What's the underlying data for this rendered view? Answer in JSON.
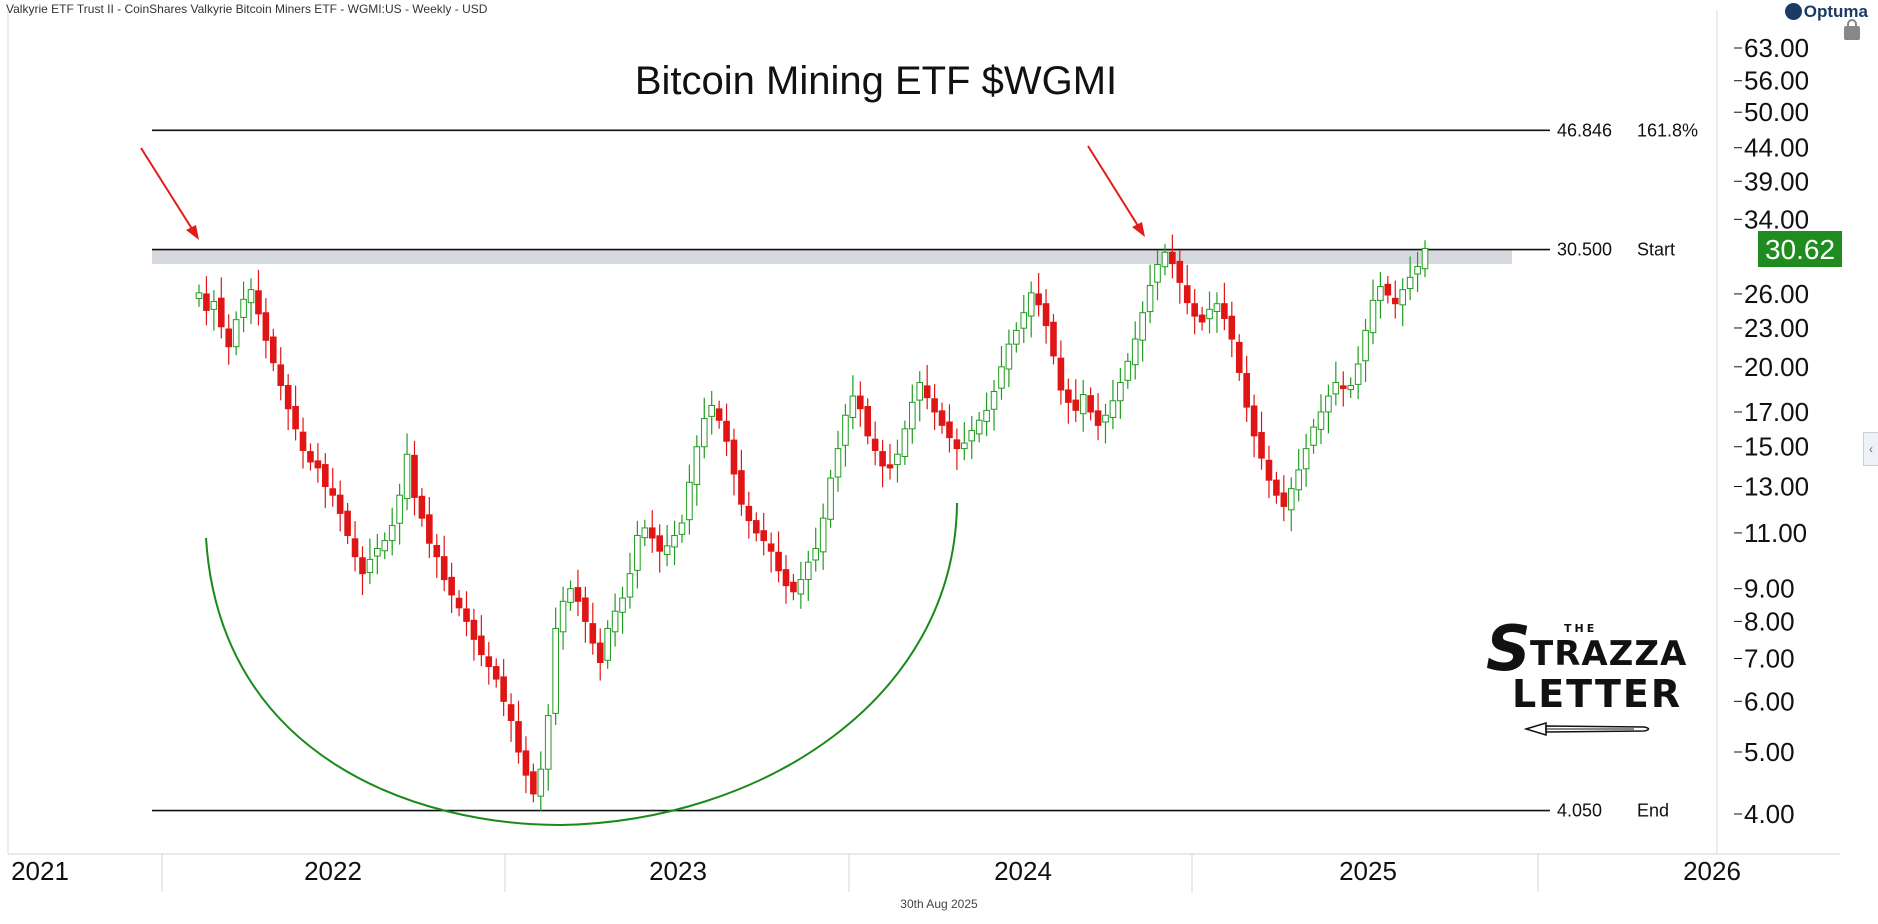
{
  "header": {
    "source_line": "Valkyrie ETF Trust II - CoinShares Valkyrie Bitcoin Miners ETF - WGMI:US - Weekly - USD",
    "logo": "Optuma",
    "date_footer": "30th Aug 2025",
    "brand": {
      "the": "THE",
      "s": "S",
      "w1": "TRAZZA",
      "w2": "LETTER"
    }
  },
  "chart_data": {
    "type": "candlestick",
    "title": "Bitcoin Mining ETF $WGMI",
    "y_scale": "log",
    "y_ticks": [
      "63.00",
      "56.00",
      "50.00",
      "44.00",
      "39.00",
      "34.00",
      "26.00",
      "23.00",
      "20.00",
      "17.00",
      "15.00",
      "13.00",
      "11.00",
      "9.00",
      "8.00",
      "7.00",
      "6.00",
      "5.00",
      "4.00"
    ],
    "x_labels": [
      "2021",
      "2022",
      "2023",
      "2024",
      "2025",
      "2026"
    ],
    "last_price": "30.62",
    "levels": [
      {
        "value": "46.846",
        "label": "161.8%"
      },
      {
        "value": "30.500",
        "label": "Start"
      },
      {
        "value": "4.050",
        "label": "End"
      }
    ],
    "weekly_close": [
      26.1,
      24.5,
      25.3,
      23.1,
      21.5,
      23.7,
      25.5,
      26.4,
      24.2,
      22.0,
      20.3,
      18.7,
      17.2,
      16.0,
      14.8,
      14.2,
      13.9,
      13.0,
      12.6,
      11.8,
      10.9,
      10.1,
      9.5,
      10.0,
      10.4,
      10.7,
      11.3,
      12.6,
      14.6,
      12.5,
      11.6,
      10.6,
      10.1,
      9.3,
      8.8,
      8.4,
      8.0,
      7.5,
      7.1,
      6.8,
      6.5,
      6.0,
      5.6,
      5.0,
      4.6,
      4.3,
      4.7,
      5.7,
      7.8,
      8.6,
      9.0,
      8.6,
      8.0,
      7.4,
      6.9,
      7.8,
      8.3,
      8.7,
      9.5,
      10.9,
      11.2,
      10.8,
      10.3,
      10.5,
      10.9,
      11.4,
      13.2,
      15.0,
      16.6,
      17.4,
      16.5,
      15.3,
      13.6,
      12.2,
      11.5,
      11.0,
      10.7,
      10.3,
      9.6,
      9.1,
      8.9,
      9.3,
      9.9,
      10.4,
      11.6,
      13.4,
      14.9,
      16.8,
      18.0,
      17.2,
      15.6,
      14.8,
      14.0,
      13.9,
      14.6,
      16.0,
      17.6,
      18.9,
      17.9,
      17.0,
      16.2,
      15.5,
      14.9,
      15.2,
      15.9,
      16.5,
      17.1,
      18.3,
      20.0,
      21.7,
      22.8,
      24.3,
      26.1,
      25.0,
      23.2,
      20.8,
      18.4,
      17.6,
      17.1,
      18.1,
      17.0,
      16.2,
      16.8,
      17.7,
      18.9,
      20.4,
      22.1,
      24.3,
      26.8,
      28.9,
      30.2,
      29.0,
      27.1,
      25.2,
      24.0,
      23.5,
      24.6,
      25.1,
      23.8,
      22.1,
      19.6,
      17.3,
      15.6,
      14.4,
      13.3,
      12.6,
      12.1,
      12.9,
      13.8,
      14.9,
      16.1,
      17.0,
      18.0,
      18.9,
      18.5,
      18.7,
      20.2,
      22.8,
      25.4,
      26.7,
      25.9,
      25.1,
      26.4,
      27.6,
      28.7,
      30.62
    ]
  }
}
